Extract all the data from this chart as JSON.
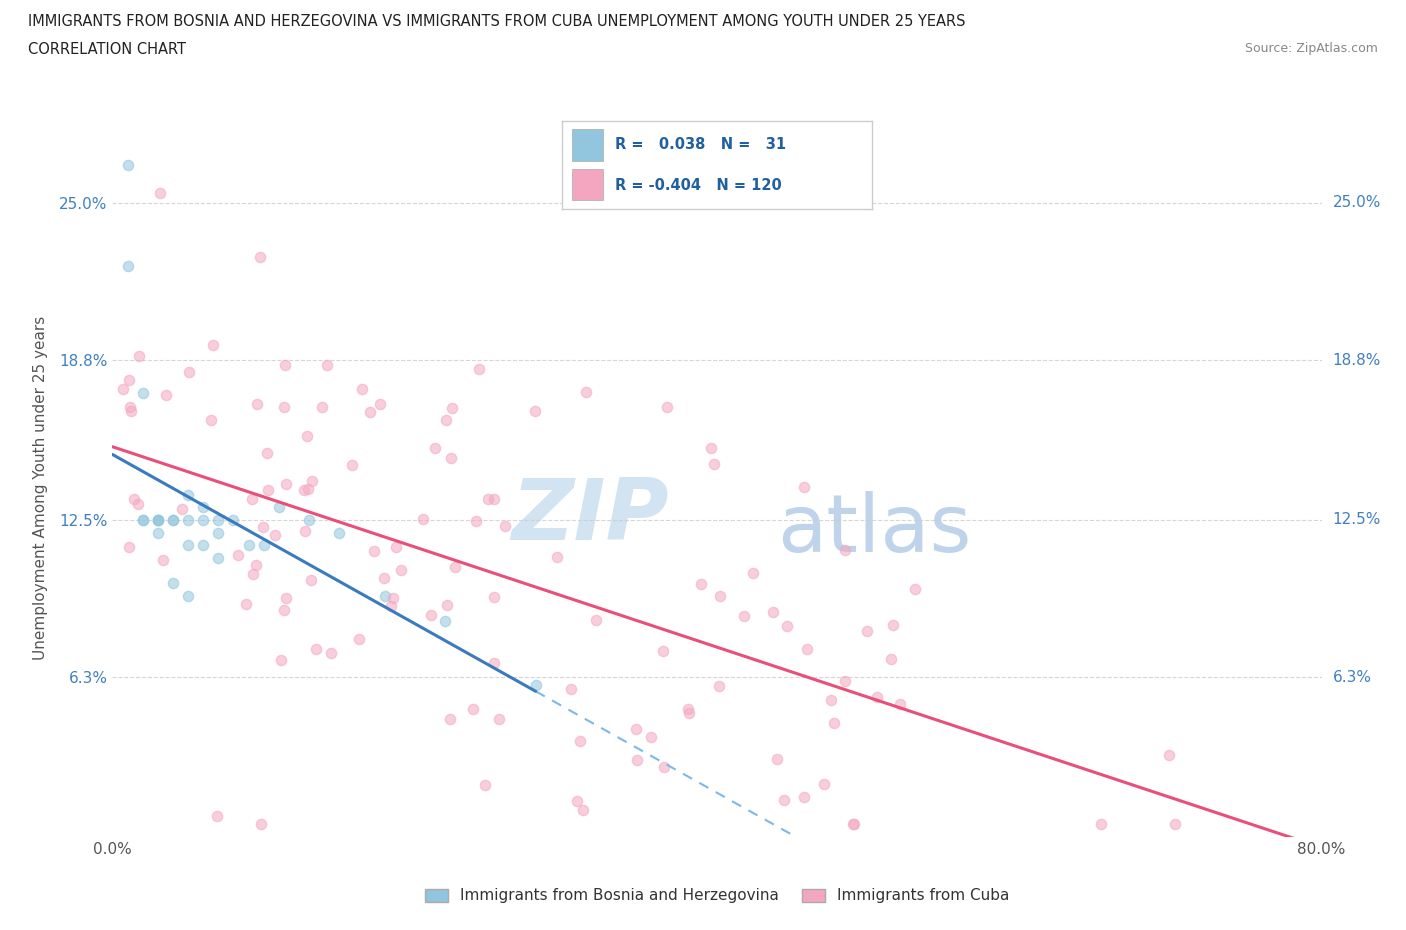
{
  "title_line1": "IMMIGRANTS FROM BOSNIA AND HERZEGOVINA VS IMMIGRANTS FROM CUBA UNEMPLOYMENT AMONG YOUTH UNDER 25 YEARS",
  "title_line2": "CORRELATION CHART",
  "source_text": "Source: ZipAtlas.com",
  "ylabel": "Unemployment Among Youth under 25 years",
  "xlim": [
    0.0,
    0.8
  ],
  "ylim": [
    0.0,
    0.275
  ],
  "ytick_vals": [
    0.063,
    0.125,
    0.188,
    0.25
  ],
  "ytick_labels": [
    "6.3%",
    "12.5%",
    "18.8%",
    "25.0%"
  ],
  "xtick_vals": [
    0.0,
    0.8
  ],
  "xtick_labels": [
    "0.0%",
    "80.0%"
  ],
  "color_bosnia": "#92c5de",
  "color_cuba": "#f4a6c0",
  "trendline_color_bosnia": "#3a7abf",
  "trendline_color_cuba": "#e8507a",
  "dashed_line_color": "#7db8e8",
  "grid_color": "#cccccc",
  "background_color": "#ffffff",
  "scatter_alpha": 0.55,
  "scatter_size": 55,
  "watermark_zip_color": "#cde0f0",
  "watermark_atlas_color": "#b8d0e8",
  "legend_border_color": "#cccccc",
  "legend_text_color": "#2060a0",
  "axis_label_color": "#555555",
  "tick_label_color": "#4080c0",
  "right_label_color": "#4080c0"
}
